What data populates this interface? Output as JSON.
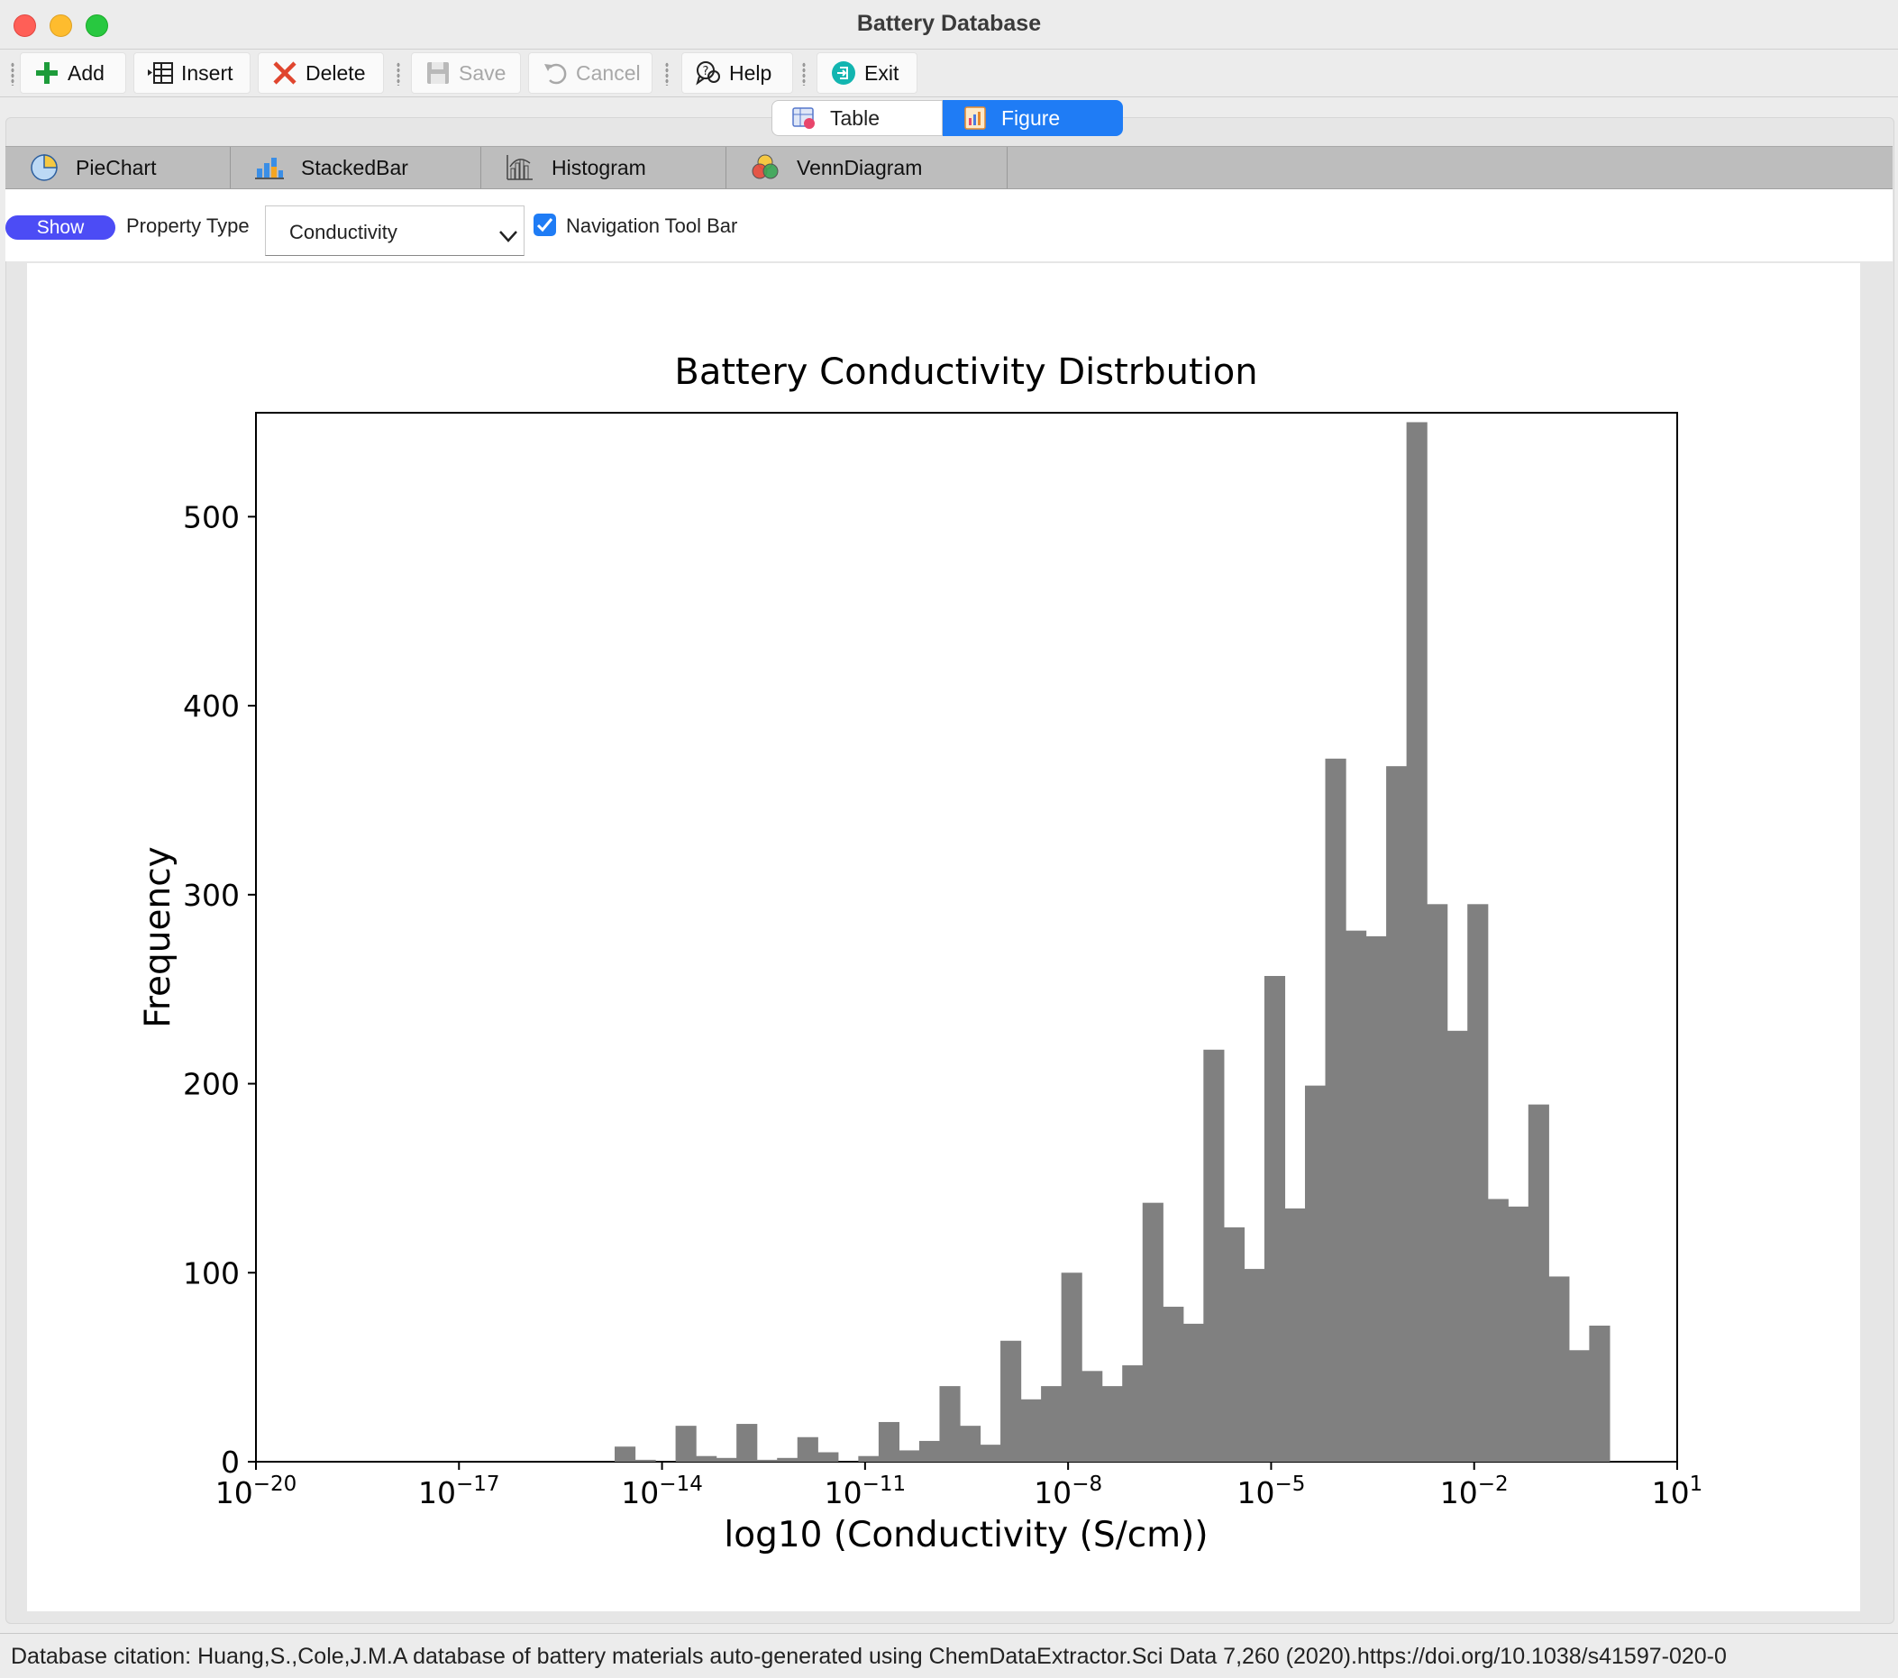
{
  "window": {
    "title": "Battery Database"
  },
  "toolbar": {
    "add_label": "Add",
    "insert_label": "Insert",
    "delete_label": "Delete",
    "save_label": "Save",
    "cancel_label": "Cancel",
    "help_label": "Help",
    "exit_label": "Exit"
  },
  "view_switch": {
    "table_label": "Table",
    "figure_label": "Figure",
    "selected": "Figure"
  },
  "tabs": [
    {
      "label": "PieChart",
      "icon": "pie-chart-icon"
    },
    {
      "label": "StackedBar",
      "icon": "stacked-bar-icon"
    },
    {
      "label": "Histogram",
      "icon": "histogram-icon"
    },
    {
      "label": "VennDiagram",
      "icon": "venn-diagram-icon"
    }
  ],
  "options": {
    "show_label": "Show",
    "property_type_label": "Property Type",
    "property_type_value": "Conductivity",
    "nav_toolbar_label": "Navigation Tool Bar",
    "nav_toolbar_checked": true
  },
  "status": {
    "citation": "Database citation:  Huang,S.,Cole,J.M.A database of battery materials auto-generated using ChemDataExtractor.Sci Data 7,260 (2020).https://doi.org/10.1038/s41597-020-0"
  },
  "colors": {
    "bar": "#808080",
    "accent": "#1f7cf5",
    "show_button": "#4c4cf5"
  },
  "chart_data": {
    "type": "bar",
    "title": "Battery Conductivity Distrbution",
    "xlabel": "log10 (Conductivity (S/cm))",
    "ylabel": "Frequency",
    "x_scale": "log",
    "xlim_exponent": [
      -20,
      1
    ],
    "ylim": [
      0,
      555
    ],
    "ytick_labels": [
      "0",
      "100",
      "200",
      "300",
      "400",
      "500"
    ],
    "xtick_exponents": [
      -20,
      -17,
      -14,
      -11,
      -8,
      -5,
      -2,
      1
    ],
    "bin_start_exponent": -14.7,
    "bin_width_exponent": 0.3,
    "values": [
      8,
      1,
      0,
      19,
      3,
      2,
      20,
      1,
      2,
      13,
      5,
      0,
      3,
      21,
      6,
      11,
      40,
      19,
      9,
      64,
      33,
      40,
      100,
      48,
      40,
      51,
      137,
      82,
      73,
      218,
      124,
      102,
      257,
      134,
      199,
      372,
      281,
      278,
      368,
      550,
      295,
      228,
      295,
      139,
      135,
      189,
      98,
      59,
      72
    ]
  }
}
